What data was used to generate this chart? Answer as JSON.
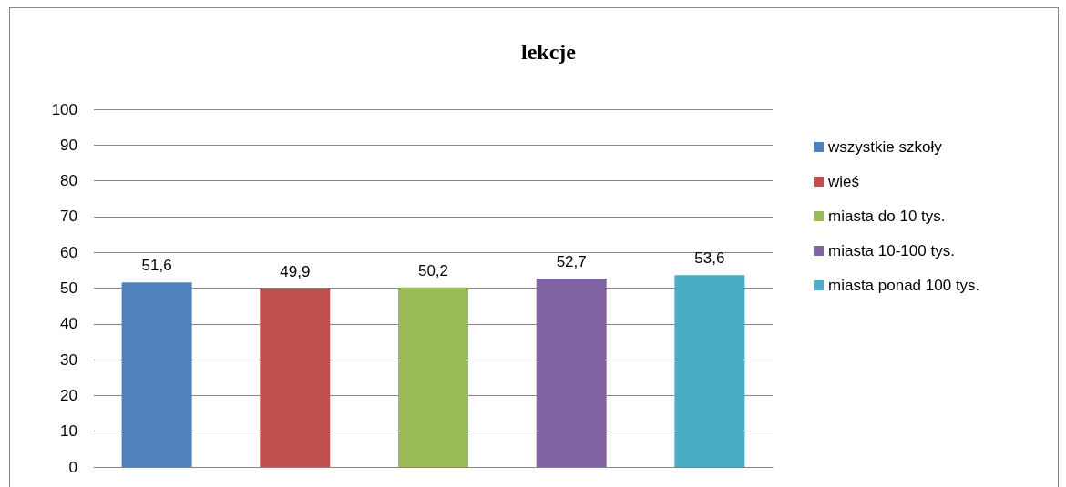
{
  "chart_data": {
    "type": "bar",
    "title": "lekcje",
    "categories": [
      null
    ],
    "series": [
      {
        "name": "wszystkie szkoły",
        "color": "#4f81bd",
        "values": [
          51.6
        ],
        "value_labels": [
          "51,6"
        ]
      },
      {
        "name": "wieś",
        "color": "#c0504d",
        "values": [
          49.9
        ],
        "value_labels": [
          "49,9"
        ]
      },
      {
        "name": "miasta do 10 tys.",
        "color": "#9bbb59",
        "values": [
          50.2
        ],
        "value_labels": [
          "50,2"
        ]
      },
      {
        "name": "miasta 10-100 tys.",
        "color": "#8064a2",
        "values": [
          52.7
        ],
        "value_labels": [
          "52,7"
        ]
      },
      {
        "name": "miasta ponad 100 tys.",
        "color": "#4bacc6",
        "values": [
          53.6
        ],
        "value_labels": [
          "53,6"
        ]
      }
    ],
    "ylim": [
      0,
      100
    ],
    "yticks": [
      0,
      10,
      20,
      30,
      40,
      50,
      60,
      70,
      80,
      90,
      100
    ],
    "grid": "y",
    "legend": "right"
  }
}
